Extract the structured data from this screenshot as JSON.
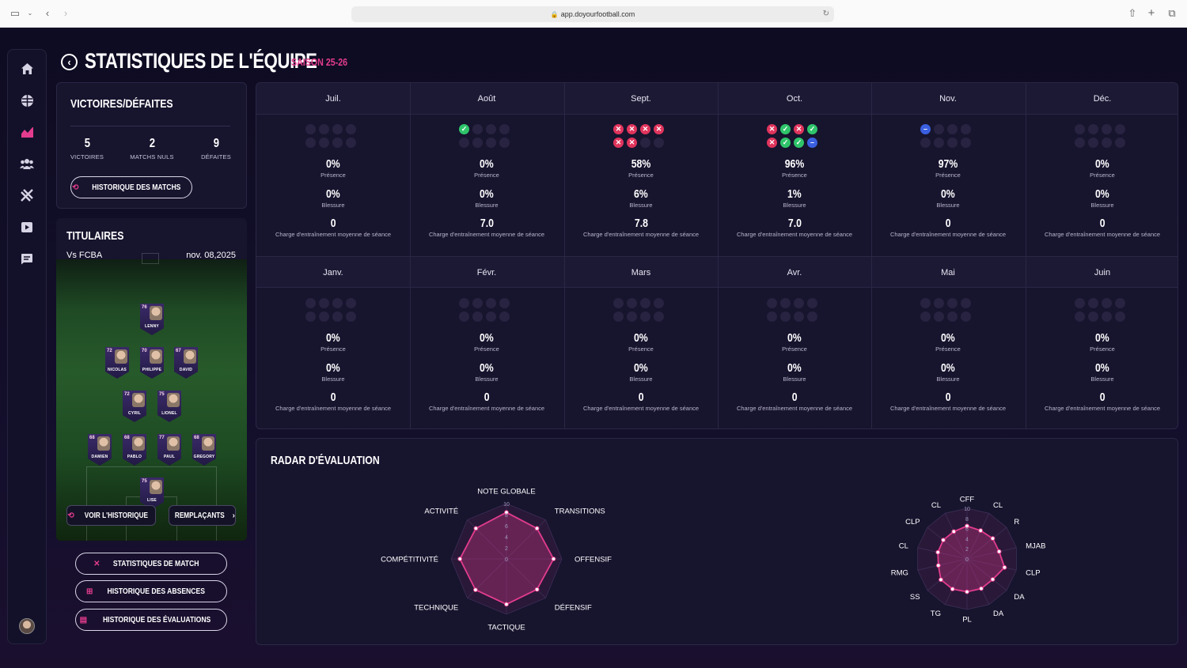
{
  "browser": {
    "url": "app.doyourfootball.com"
  },
  "page": {
    "title": "STATISTIQUES DE L'ÉQUIPE",
    "season": "SAISON 25-26"
  },
  "record": {
    "title": "VICTOIRES/DÉFAITES",
    "wins": "5",
    "wins_label": "VICTOIRES",
    "draws": "2",
    "draws_label": "MATCHS NULS",
    "losses": "9",
    "losses_label": "DÉFAITES",
    "history_button": "HISTORIQUE DES MATCHS"
  },
  "lineup": {
    "title": "TITULAIRES",
    "opponent": "Vs FCBA",
    "date": "nov. 08,2025",
    "players": [
      {
        "num": "76",
        "name": "LENNY"
      },
      {
        "num": "72",
        "name": "NICOLAS"
      },
      {
        "num": "70",
        "name": "PHILIPPE"
      },
      {
        "num": "67",
        "name": "DAVID"
      },
      {
        "num": "72",
        "name": "CYRIL"
      },
      {
        "num": "75",
        "name": "LIONEL"
      },
      {
        "num": "68",
        "name": "DAMIEN"
      },
      {
        "num": "68",
        "name": "PABLO"
      },
      {
        "num": "77",
        "name": "PAUL"
      },
      {
        "num": "68",
        "name": "GREGORY"
      },
      {
        "num": "75",
        "name": "LISE"
      }
    ],
    "history_button": "VOIR L'HISTORIQUE",
    "subs_button": "REMPLAÇANTS"
  },
  "actions": {
    "match_stats": "STATISTIQUES DE MATCH",
    "absences": "HISTORIQUE DES ABSENCES",
    "evaluations": "HISTORIQUE DES ÉVALUATIONS"
  },
  "labels": {
    "presence": "Présence",
    "injury": "Blessure",
    "load": "Charge d'entraînement moyenne de séance"
  },
  "months": [
    {
      "name": "Juil.",
      "results": [],
      "presence": "0%",
      "injury": "0%",
      "load": "0"
    },
    {
      "name": "Août",
      "results": [
        "W"
      ],
      "presence": "0%",
      "injury": "0%",
      "load": "7.0"
    },
    {
      "name": "Sept.",
      "results": [
        "L",
        "L",
        "L",
        "L",
        "L",
        "L"
      ],
      "presence": "58%",
      "injury": "6%",
      "load": "7.8"
    },
    {
      "name": "Oct.",
      "results": [
        "L",
        "W",
        "L",
        "W",
        "L",
        "W",
        "W",
        "D"
      ],
      "presence": "96%",
      "injury": "1%",
      "load": "7.0"
    },
    {
      "name": "Nov.",
      "results": [
        "D"
      ],
      "presence": "97%",
      "injury": "0%",
      "load": "0"
    },
    {
      "name": "Déc.",
      "results": [],
      "presence": "0%",
      "injury": "0%",
      "load": "0"
    },
    {
      "name": "Janv.",
      "results": [],
      "presence": "0%",
      "injury": "0%",
      "load": "0"
    },
    {
      "name": "Févr.",
      "results": [],
      "presence": "0%",
      "injury": "0%",
      "load": "0"
    },
    {
      "name": "Mars",
      "results": [],
      "presence": "0%",
      "injury": "0%",
      "load": "0"
    },
    {
      "name": "Avr.",
      "results": [],
      "presence": "0%",
      "injury": "0%",
      "load": "0"
    },
    {
      "name": "Mai",
      "results": [],
      "presence": "0%",
      "injury": "0%",
      "load": "0"
    },
    {
      "name": "Juin",
      "results": [],
      "presence": "0%",
      "injury": "0%",
      "load": "0"
    }
  ],
  "radar": {
    "title": "RADAR D'ÉVALUATION",
    "team": {
      "axes": [
        "NOTE GLOBALE",
        "TRANSITIONS",
        "OFFENSIF",
        "DÉFENSIF",
        "TACTIQUE",
        "TECHNIQUE",
        "COMPÉTITIVITÉ",
        "ACTIVITÉ"
      ],
      "values": [
        8.4,
        7.8,
        8.5,
        7.8,
        8.2,
        7.9,
        8.4,
        7.8
      ],
      "ticks": [
        "0",
        "2",
        "4",
        "6",
        "8",
        "10"
      ],
      "max": 10
    },
    "positions": {
      "axes": [
        "CFF",
        "CL",
        "R",
        "MJAB",
        "CLP",
        "DA",
        "DA",
        "PL",
        "TG",
        "SS",
        "RMG",
        "CL",
        "CLP",
        "CL"
      ],
      "values": [
        6.5,
        6.2,
        6.5,
        6.5,
        7.6,
        6.5,
        6.5,
        6.5,
        6.6,
        6.6,
        5.8,
        5.9,
        6.0,
        6.0
      ],
      "ticks": [
        "0",
        "2",
        "4",
        "6",
        "8",
        "10"
      ],
      "max": 10
    }
  },
  "colors": {
    "accent": "#e33c8e",
    "win": "#2fc46a",
    "loss": "#e0345c",
    "draw": "#3a5fe0"
  }
}
